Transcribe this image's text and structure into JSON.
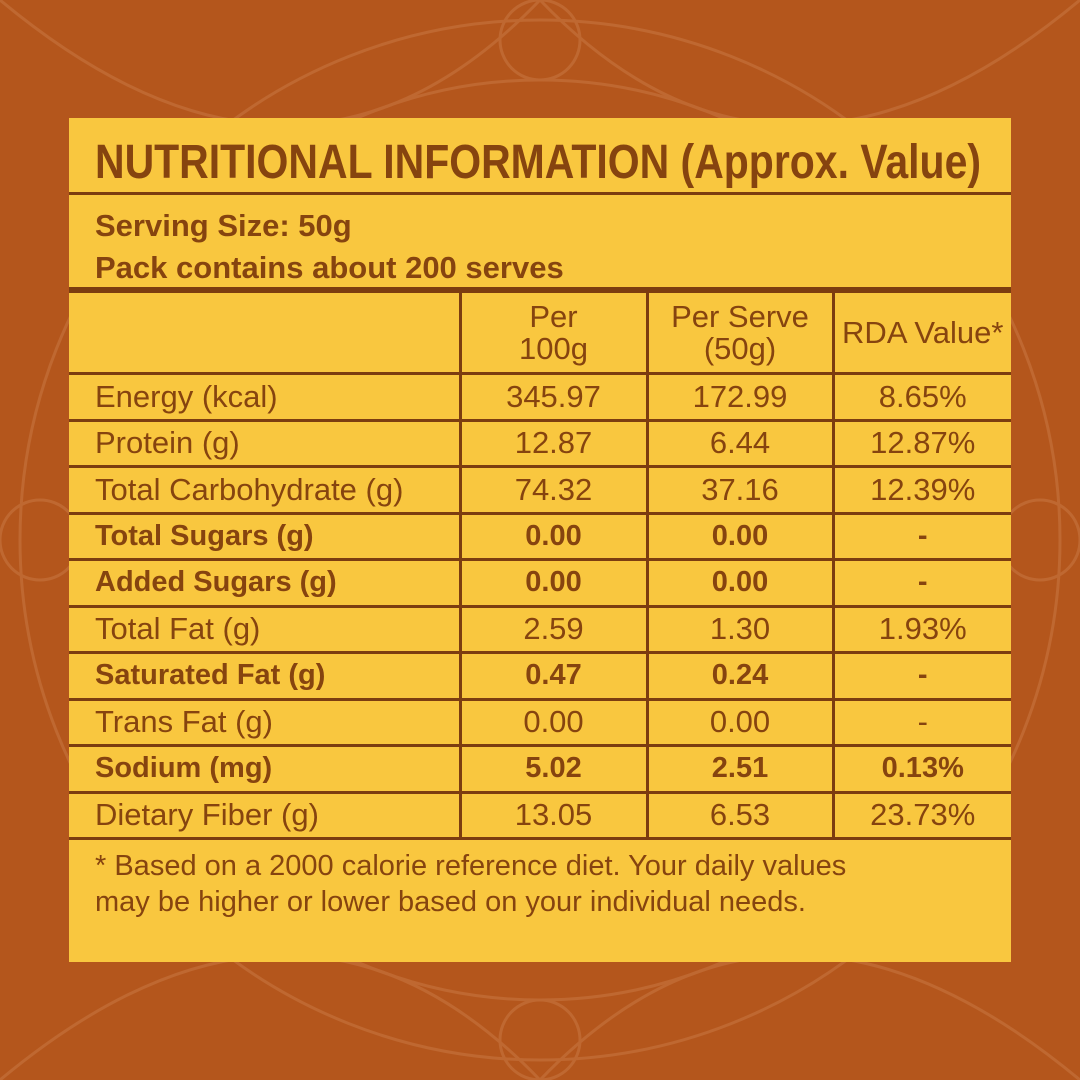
{
  "title": "NUTRITIONAL INFORMATION (Approx. Value)",
  "serving": [
    "Serving Size: 50g",
    "Pack contains about 200 serves"
  ],
  "table": {
    "header": [
      [
        "Per",
        "100g"
      ],
      [
        "Per Serve",
        "(50g)"
      ],
      [
        "RDA Value*"
      ]
    ],
    "rows": [
      {
        "label": "Energy (kcal)",
        "values": [
          "345.97",
          "172.99",
          "8.65%"
        ],
        "bold": false
      },
      {
        "label": "Protein (g)",
        "values": [
          "12.87",
          "6.44",
          "12.87%"
        ],
        "bold": false
      },
      {
        "label": "Total Carbohydrate (g)",
        "values": [
          "74.32",
          "37.16",
          "12.39%"
        ],
        "bold": false
      },
      {
        "label": "Total Sugars (g)",
        "values": [
          "0.00",
          "0.00",
          "-"
        ],
        "bold": true
      },
      {
        "label": "Added Sugars (g)",
        "values": [
          "0.00",
          "0.00",
          "-"
        ],
        "bold": true
      },
      {
        "label": "Total Fat (g)",
        "values": [
          "2.59",
          "1.30",
          "1.93%"
        ],
        "bold": false
      },
      {
        "label": "Saturated Fat (g)",
        "values": [
          "0.47",
          "0.24",
          "-"
        ],
        "bold": true
      },
      {
        "label": "Trans Fat (g)",
        "values": [
          "0.00",
          "0.00",
          "-"
        ],
        "bold": false
      },
      {
        "label": "Sodium (mg)",
        "values": [
          "5.02",
          "2.51",
          "0.13%"
        ],
        "bold": true
      },
      {
        "label": "Dietary Fiber (g)",
        "values": [
          "13.05",
          "6.53",
          "23.73%"
        ],
        "bold": false
      }
    ]
  },
  "footnote": [
    "* Based on a 2000 calorie reference diet. Your daily values",
    "may be higher or lower based on your individual needs."
  ]
}
